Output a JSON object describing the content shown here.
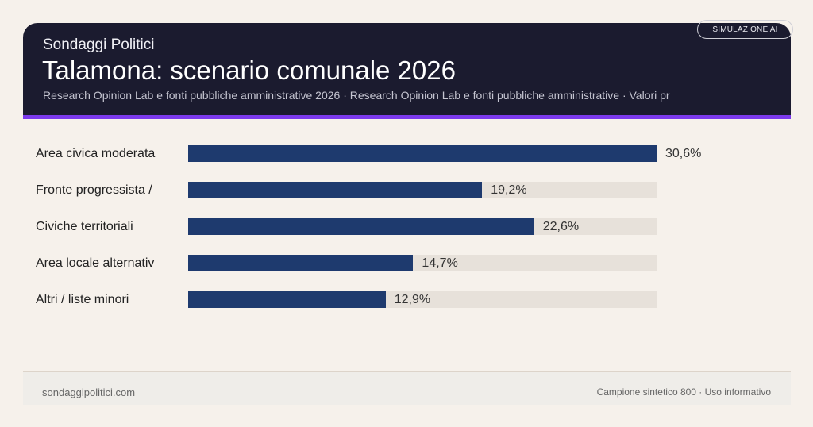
{
  "header": {
    "brand": "Sondaggi Politici",
    "title": "Talamona: scenario comunale 2026",
    "subtitle": "Research Opinion Lab e fonti pubbliche amministrative 2026 · Research Opinion Lab e fonti pubbliche amministrative · Valori pr",
    "badge": "SIMULAZIONE AI"
  },
  "chart_data": {
    "type": "bar",
    "orientation": "horizontal",
    "categories": [
      "Area civica moderata",
      "Fronte progressista /",
      "Civiche territoriali",
      "Area locale alternativ",
      "Altri / liste minori"
    ],
    "values": [
      30.6,
      19.2,
      22.6,
      14.7,
      12.9
    ],
    "value_labels": [
      "30,6%",
      "19,2%",
      "22,6%",
      "14,7%",
      "12,9%"
    ],
    "xlim": [
      0,
      30.6
    ],
    "grid": false,
    "colors": {
      "bar": "#1e3a6e",
      "track": "#e7e1da"
    }
  },
  "footer": {
    "left": "sondaggipolitici.com",
    "right": "Campione sintetico 800 · Uso informativo"
  },
  "colors": {
    "header_bg": "#1b1b2f",
    "accent": "#7c3aed",
    "background": "#f6f1eb"
  }
}
